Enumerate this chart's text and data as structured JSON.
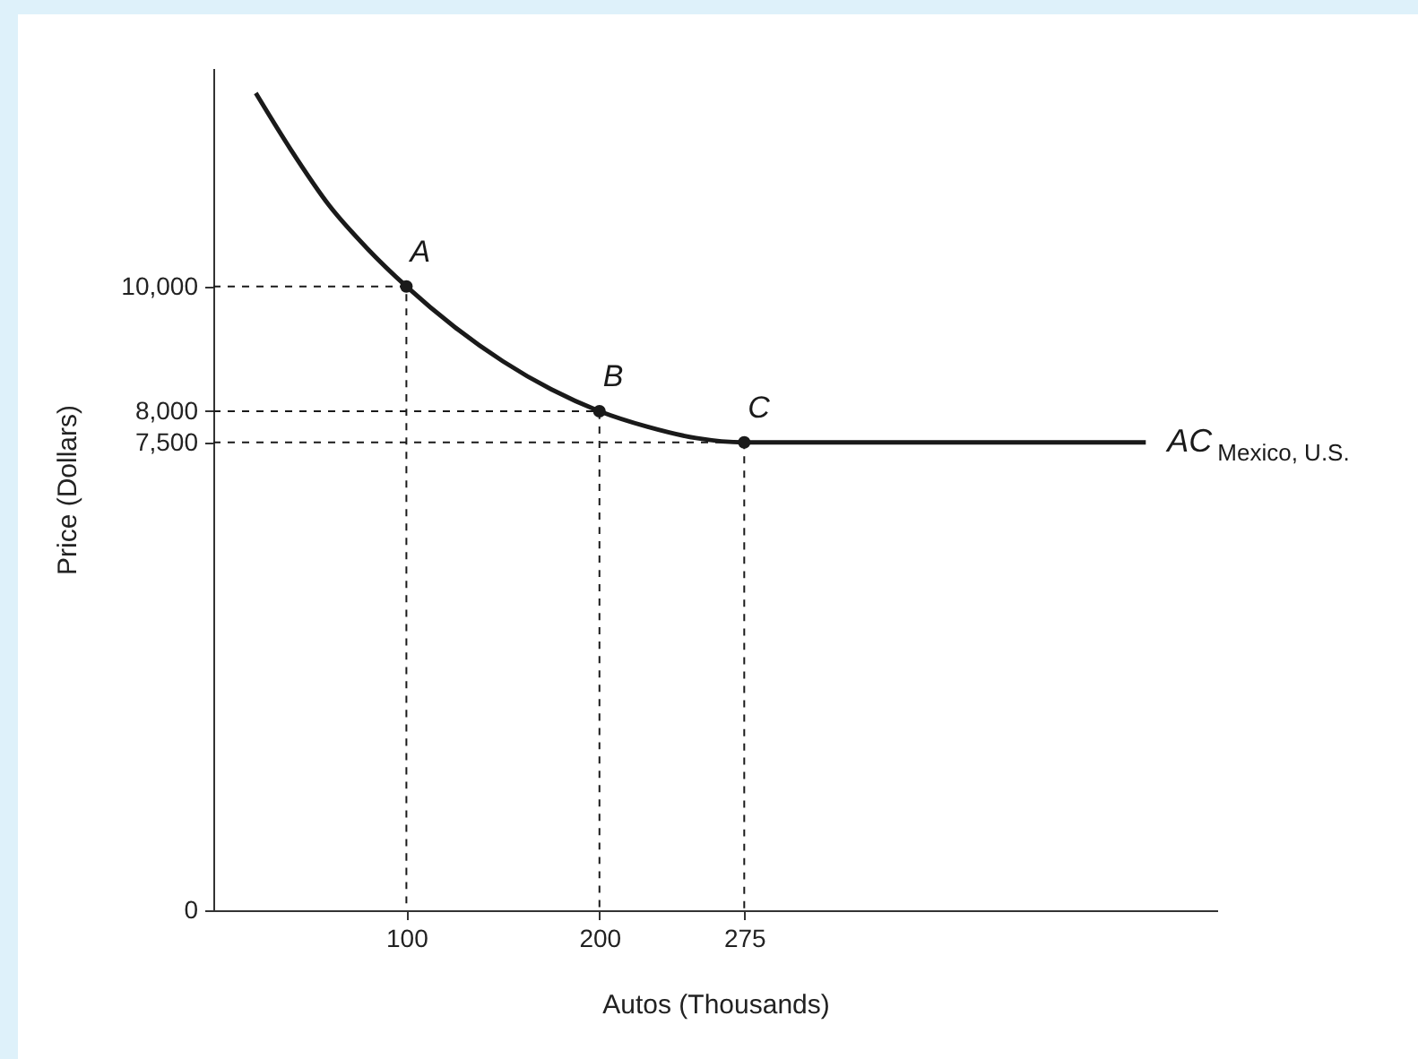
{
  "chart_data": {
    "type": "line",
    "xlabel": "Autos (Thousands)",
    "ylabel": "Price (Dollars)",
    "xlim": [
      0,
      520
    ],
    "ylim": [
      0,
      13500
    ],
    "xticks": [
      100,
      200,
      275
    ],
    "yticks": [
      0,
      {
        "value": 7500,
        "label": "7,500"
      },
      {
        "value": 8000,
        "label": "8,000"
      },
      {
        "value": 10000,
        "label": "10,000"
      }
    ],
    "marker": "none",
    "series": [
      {
        "name": "AC$_{Mexico, U.S.}$",
        "color": "#1a1a1a",
        "x": [
          22,
          40,
          60,
          80,
          100,
          125,
          150,
          175,
          200,
          225,
          250,
          275,
          483
        ],
        "values": [
          13100,
          12200,
          11300,
          10600,
          10000,
          9350,
          8800,
          8350,
          8000,
          7750,
          7570,
          7500,
          7500
        ]
      },
      {
        "color": "#1a1a1a",
        "type": "line",
        "line_style": "dashed",
        "x": [
          0,
          100,
          100
        ],
        "values": [
          10000,
          10000,
          0
        ]
      },
      {
        "color": "#1a1a1a",
        "type": "line",
        "line_style": "dashed",
        "x": [
          0,
          200,
          200
        ],
        "values": [
          8000,
          8000,
          0
        ]
      },
      {
        "color": "#1a1a1a",
        "type": "line",
        "line_style": "dashed",
        "x": [
          0,
          275,
          275
        ],
        "values": [
          7500,
          7500,
          0
        ]
      },
      {
        "color": "#1a1a1a",
        "type": "scatter",
        "marker": "circle",
        "x": [
          100,
          200,
          275
        ],
        "values": [
          10000,
          8000,
          7500
        ]
      }
    ],
    "annotations": [
      {
        "text": "A",
        "x": 100,
        "y": 10000
      },
      {
        "text": "B",
        "x": 200,
        "y": 8000
      },
      {
        "text": "C",
        "x": 275,
        "y": 7500
      }
    ]
  }
}
